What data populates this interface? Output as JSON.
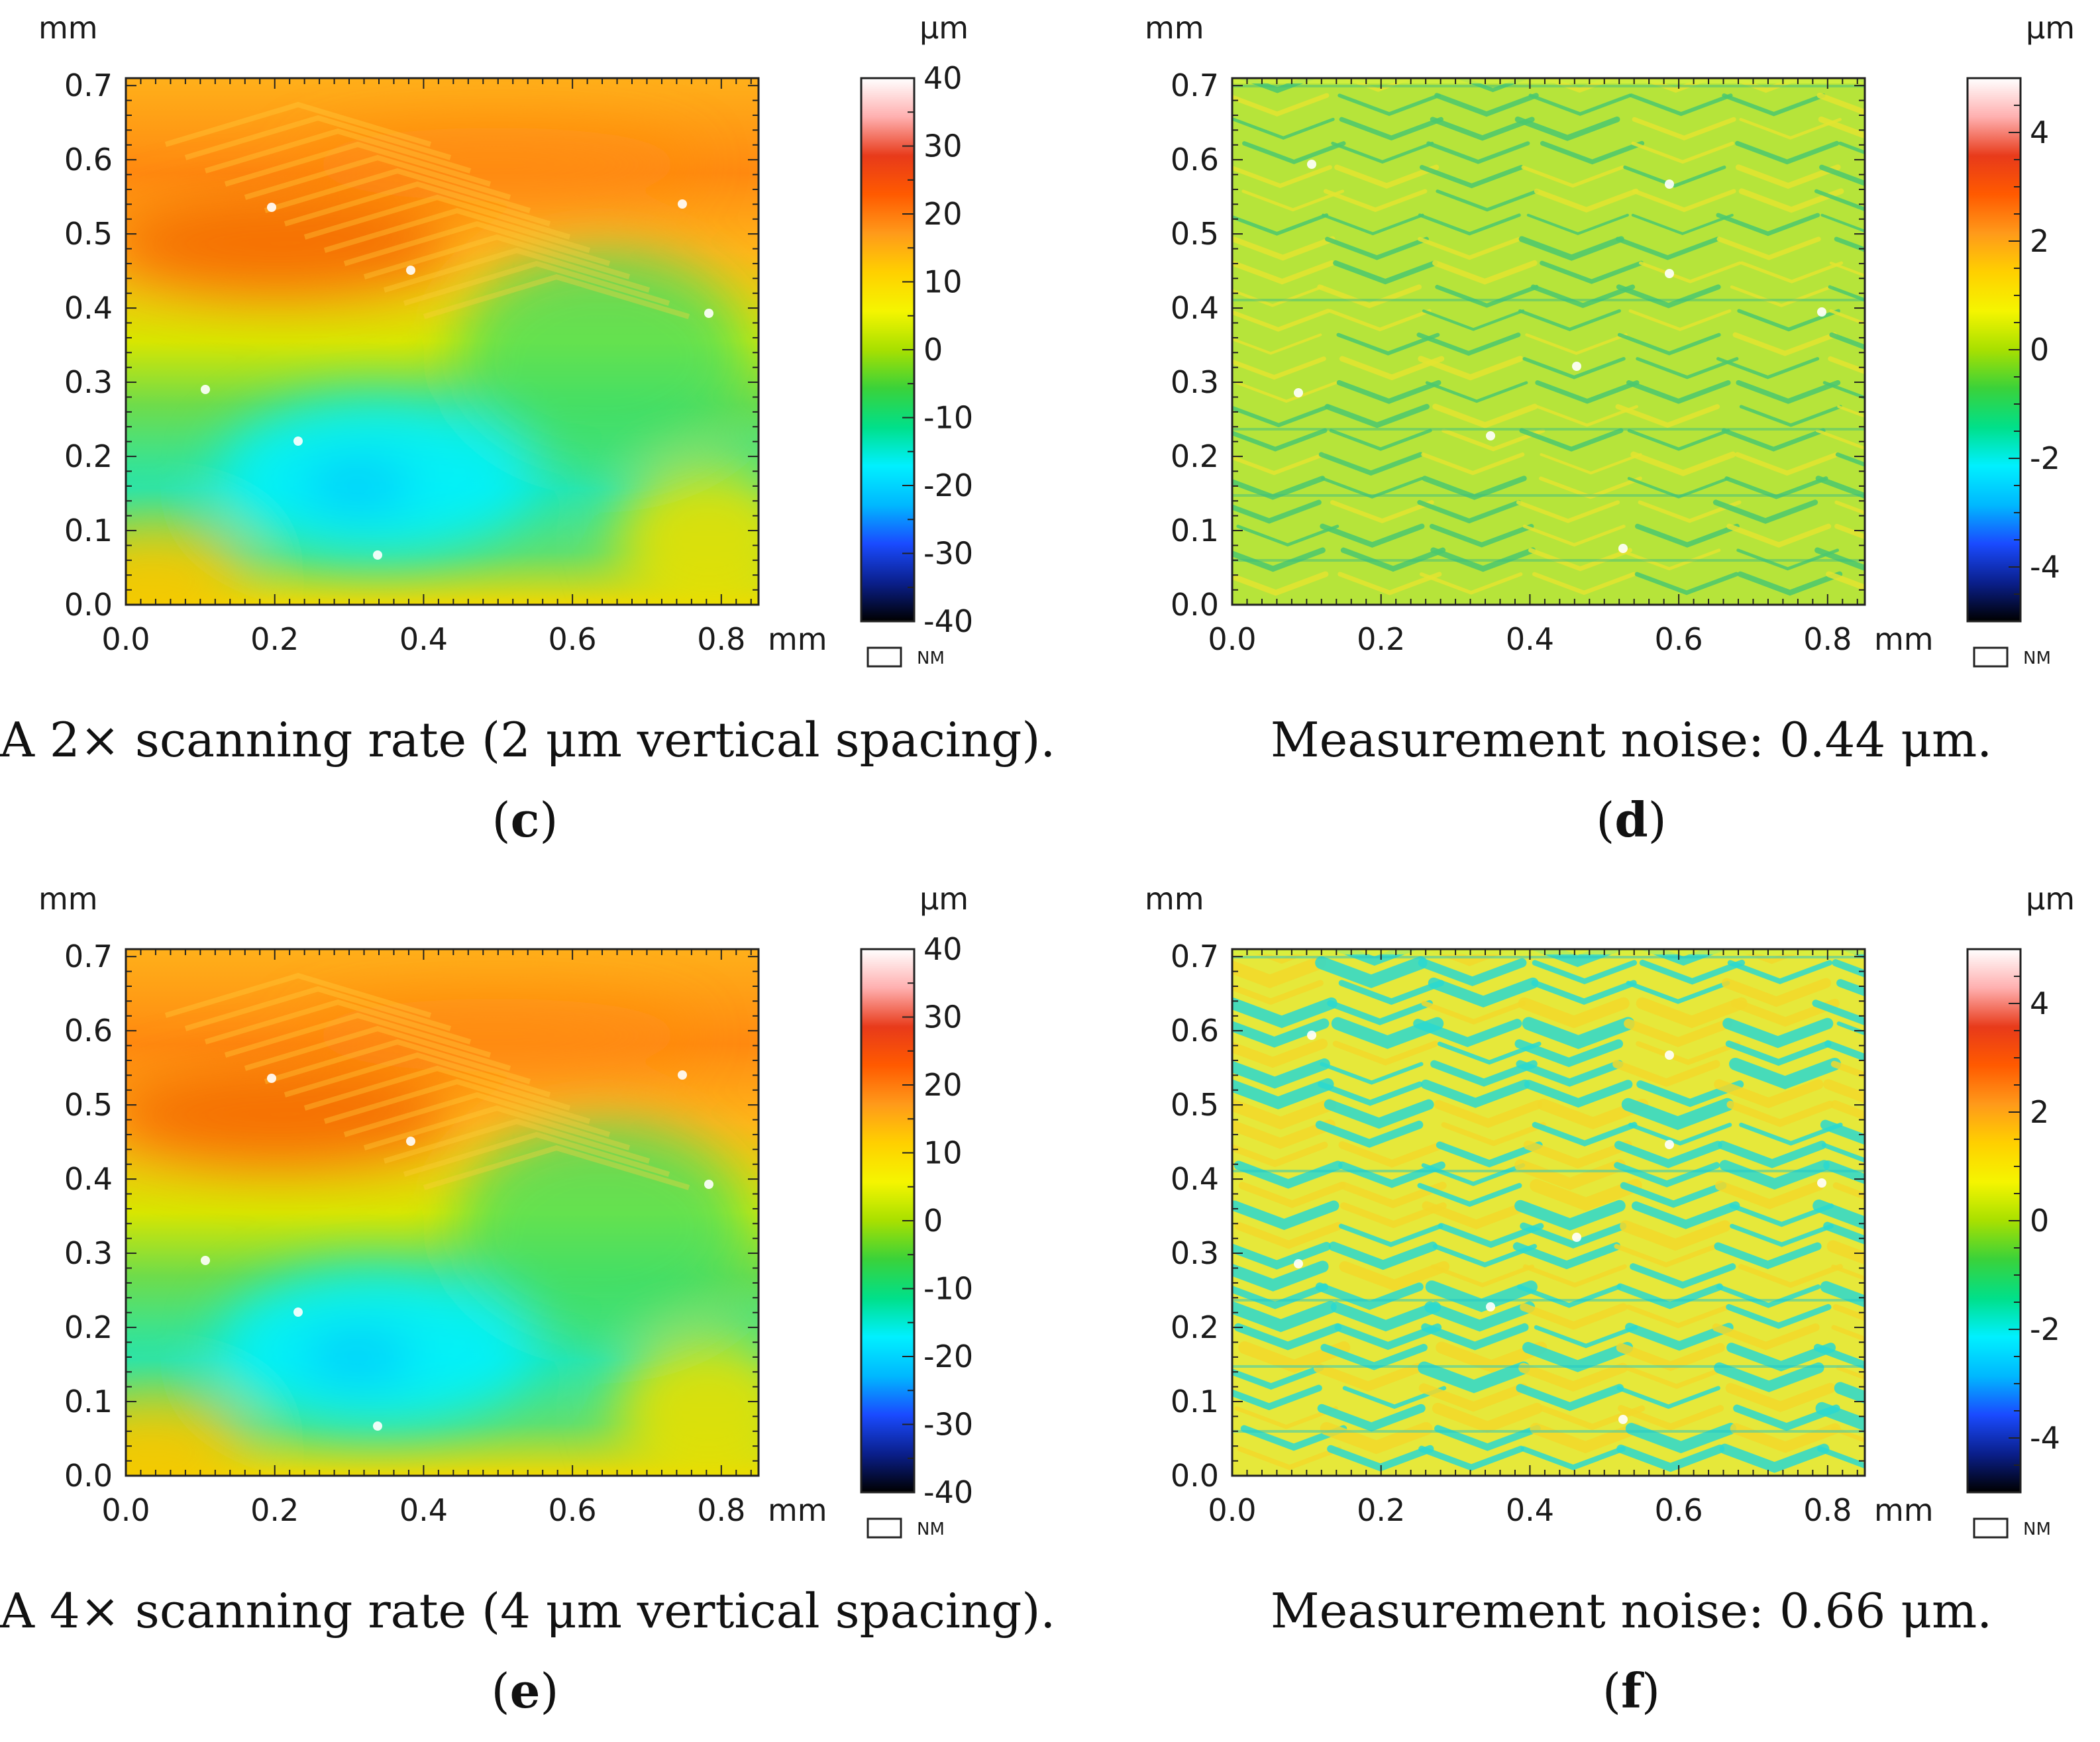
{
  "colorbar_gradient": [
    "#000000",
    "#0a1f8c",
    "#1a4bff",
    "#00b8ff",
    "#00f0ff",
    "#00e08a",
    "#3ad23a",
    "#a8e000",
    "#f5f500",
    "#ffd000",
    "#ff9a1a",
    "#ff5a00",
    "#e83a1a",
    "#ffb0b0",
    "#ffffff"
  ],
  "chart_data": [
    {
      "id": "c",
      "type": "heatmap",
      "description": "A 2× scanning rate (2 μm vertical spacing).",
      "letter": "c",
      "x_unit": "mm",
      "y_unit": "mm",
      "z_unit": "μm",
      "x_ticks": [
        "0.0",
        "0.2",
        "0.4",
        "0.6",
        "0.8"
      ],
      "y_ticks": [
        "0.0",
        "0.1",
        "0.2",
        "0.3",
        "0.4",
        "0.5",
        "0.6",
        "0.7"
      ],
      "xlim": [
        0,
        0.85
      ],
      "ylim": [
        0,
        0.71
      ],
      "colorbar_ticks": [
        "40",
        "30",
        "20",
        "10",
        "0",
        "-10",
        "-20",
        "-30",
        "-40"
      ],
      "colorbar_range": [
        -40,
        40
      ],
      "nm_label": "NM",
      "surface": "form"
    },
    {
      "id": "d",
      "type": "heatmap",
      "description": "Measurement noise: 0.44 μm.",
      "letter": "d",
      "x_unit": "mm",
      "y_unit": "mm",
      "z_unit": "μm",
      "x_ticks": [
        "0.0",
        "0.2",
        "0.4",
        "0.6",
        "0.8"
      ],
      "y_ticks": [
        "0.0",
        "0.1",
        "0.2",
        "0.3",
        "0.4",
        "0.5",
        "0.6",
        "0.7"
      ],
      "xlim": [
        0,
        0.85
      ],
      "ylim": [
        0,
        0.71
      ],
      "colorbar_ticks": [
        "4",
        "2",
        "0",
        "-2",
        "-4"
      ],
      "colorbar_range": [
        -5,
        5
      ],
      "nm_label": "NM",
      "surface": "noise-low"
    },
    {
      "id": "e",
      "type": "heatmap",
      "description": "A 4× scanning rate (4 μm vertical spacing).",
      "letter": "e",
      "x_unit": "mm",
      "y_unit": "mm",
      "z_unit": "μm",
      "x_ticks": [
        "0.0",
        "0.2",
        "0.4",
        "0.6",
        "0.8"
      ],
      "y_ticks": [
        "0.0",
        "0.1",
        "0.2",
        "0.3",
        "0.4",
        "0.5",
        "0.6",
        "0.7"
      ],
      "xlim": [
        0,
        0.85
      ],
      "ylim": [
        0,
        0.71
      ],
      "colorbar_ticks": [
        "40",
        "30",
        "20",
        "10",
        "0",
        "-10",
        "-20",
        "-30",
        "-40"
      ],
      "colorbar_range": [
        -40,
        40
      ],
      "nm_label": "NM",
      "surface": "form"
    },
    {
      "id": "f",
      "type": "heatmap",
      "description": "Measurement noise: 0.66 μm.",
      "letter": "f",
      "x_unit": "mm",
      "y_unit": "mm",
      "z_unit": "μm",
      "x_ticks": [
        "0.0",
        "0.2",
        "0.4",
        "0.6",
        "0.8"
      ],
      "y_ticks": [
        "0.0",
        "0.1",
        "0.2",
        "0.3",
        "0.4",
        "0.5",
        "0.6",
        "0.7"
      ],
      "xlim": [
        0,
        0.85
      ],
      "ylim": [
        0,
        0.71
      ],
      "colorbar_ticks": [
        "4",
        "2",
        "0",
        "-2",
        "-4"
      ],
      "colorbar_range": [
        -5,
        5
      ],
      "nm_label": "NM",
      "surface": "noise-high"
    }
  ]
}
